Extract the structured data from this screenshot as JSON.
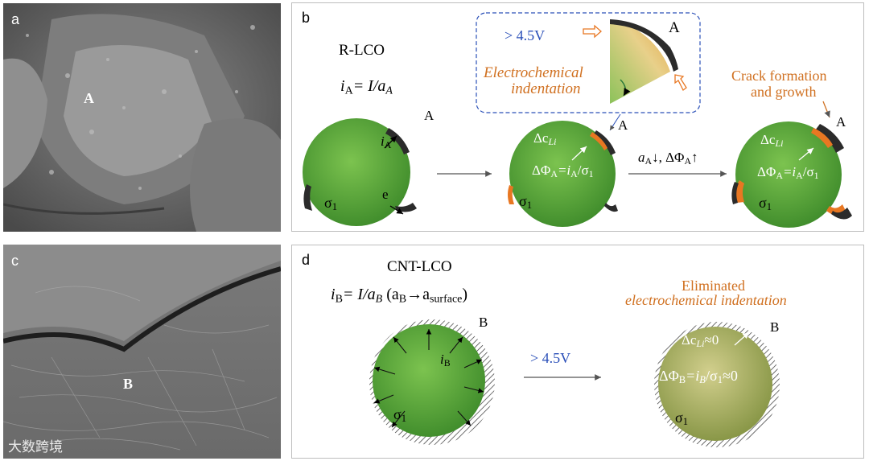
{
  "panels": {
    "a": {
      "label": "a",
      "region_label": "A"
    },
    "b": {
      "label": "b",
      "title": "R-LCO",
      "current_eq": "= I/a",
      "voltage": "> 4.5V",
      "indentation_line1": "Electrochemical",
      "indentation_line2": "indentation",
      "crack_line1": "Crack formation",
      "crack_line2": "and growth",
      "step_label": "a",
      "step_rest": "↓, ΔΦ",
      "step_up": "↑",
      "site_label": "A",
      "sigma": "σ",
      "e_label": "e",
      "dc": "Δc",
      "dphi_eq": "=i",
      "dphi_div": "/σ"
    },
    "c": {
      "label": "c",
      "region_label": "B"
    },
    "d": {
      "label": "d",
      "title": "CNT-LCO",
      "current_eq": "= I/a",
      "current_paren": "(a",
      "arrow": "→a",
      "surface": "surface",
      "paren_close": ")",
      "voltage": "> 4.5V",
      "elim_line1": "Eliminated",
      "elim_line2": "electrochemical indentation",
      "site_label": "B",
      "dc_tail": "≈0",
      "dphi_tail": "≈0"
    }
  },
  "watermark": "大数跨境",
  "colors": {
    "accent_orange": "#d07020",
    "voltage_blue": "#2a4fb8",
    "particle_green": "#5aa83a",
    "cei_dark": "#2b2b2b",
    "crack_orange": "#e87722"
  }
}
